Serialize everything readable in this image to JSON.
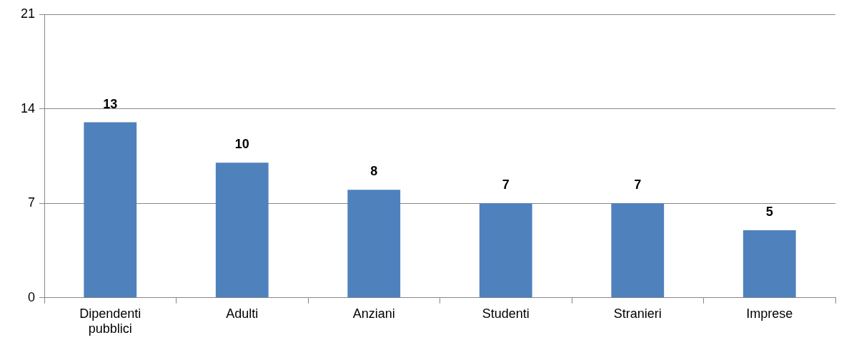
{
  "chart_data": {
    "type": "bar",
    "categories": [
      "Dipendenti pubblici",
      "Adulti",
      "Anziani",
      "Studenti",
      "Stranieri",
      "Imprese"
    ],
    "values": [
      13,
      10,
      8,
      7,
      7,
      5
    ],
    "color": "#4f81bd",
    "ylim": [
      0,
      21
    ],
    "yticks": [
      0,
      7,
      14,
      21
    ],
    "grid": "y",
    "data_labels": true,
    "legend": false
  }
}
